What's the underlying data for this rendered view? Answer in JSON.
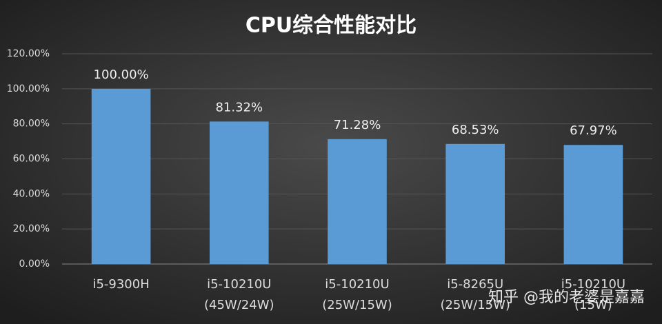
{
  "chart_data": {
    "type": "bar",
    "title": "CPU综合性能对比",
    "categories": [
      [
        "i5-9300H"
      ],
      [
        "i5-10210U",
        "(45W/24W)"
      ],
      [
        "i5-10210U",
        "(25W/15W)"
      ],
      [
        "i5-8265U",
        "(25W/15W)"
      ],
      [
        "i5-10210U",
        "(15W)"
      ]
    ],
    "values": [
      100,
      81.32,
      71.28,
      68.53,
      67.97
    ],
    "value_labels": [
      "100.00%",
      "81.32%",
      "71.28%",
      "68.53%",
      "67.97%"
    ],
    "color": "#5b9bd5",
    "ylim": [
      0,
      120
    ],
    "yticks": [
      {
        "value": 0,
        "label": "0.00%"
      },
      {
        "value": 20,
        "label": "20.00%"
      },
      {
        "value": 40,
        "label": "40.00%"
      },
      {
        "value": 60,
        "label": "60.00%"
      },
      {
        "value": 80,
        "label": "80.00%"
      },
      {
        "value": 100,
        "label": "100.00%"
      },
      {
        "value": 120,
        "label": "120.00%"
      }
    ],
    "grid": true,
    "watermark": "知乎 @我的老婆是嘉嘉"
  }
}
